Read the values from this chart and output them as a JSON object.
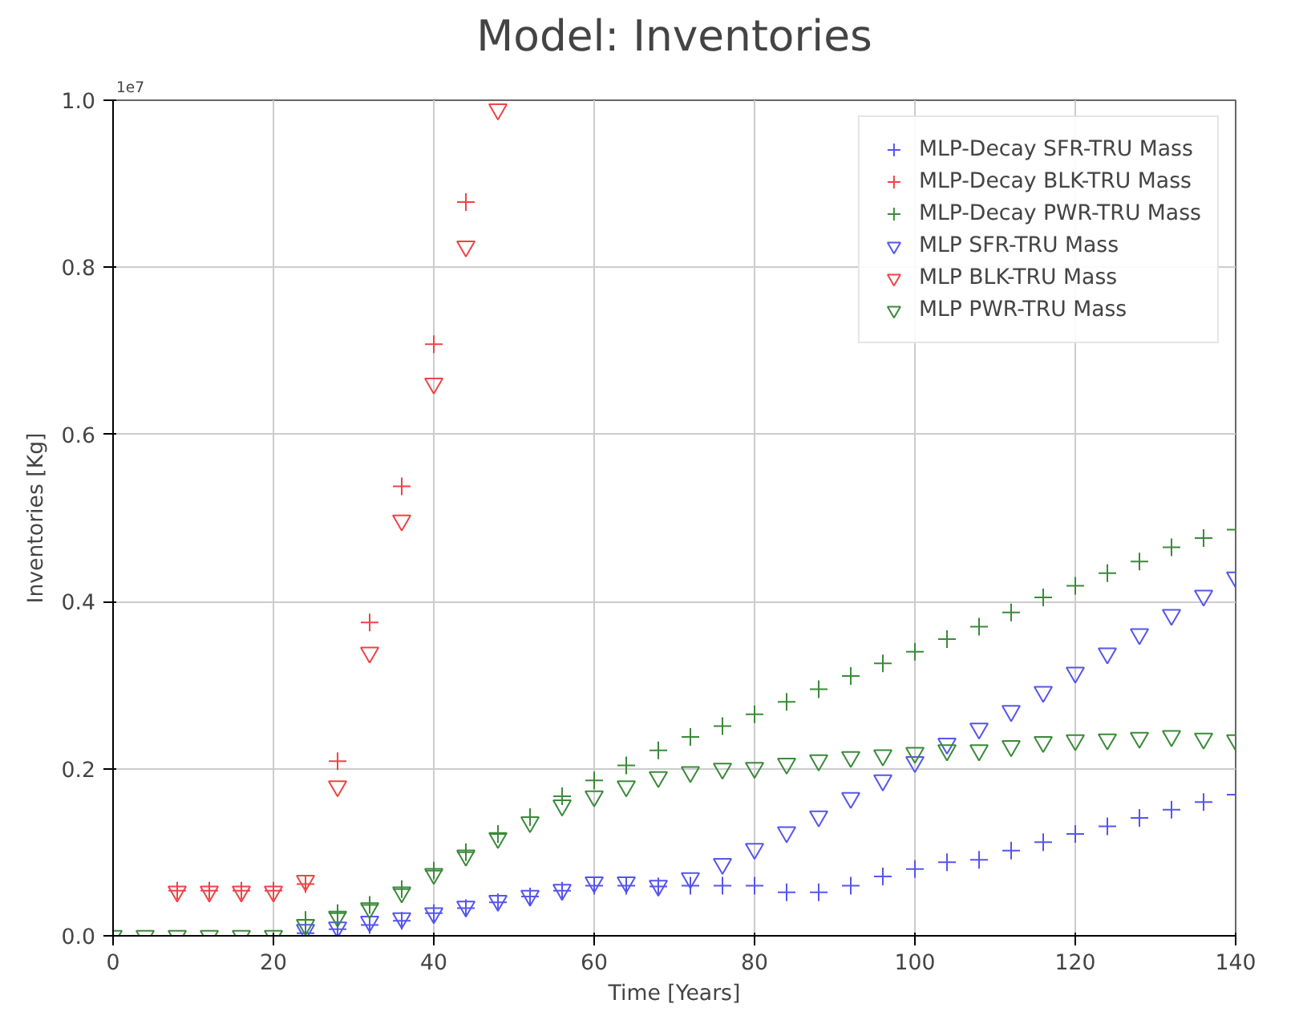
{
  "chart_data": {
    "type": "scatter",
    "title": "Model: Inventories",
    "xlabel": "Time [Years]",
    "ylabel": "Inventories [Kg]",
    "annotations": [
      "1e7"
    ],
    "x": [
      0,
      4,
      8,
      12,
      16,
      20,
      24,
      28,
      32,
      36,
      40,
      44,
      48,
      52,
      56,
      60,
      64,
      68,
      72,
      76,
      80,
      84,
      88,
      92,
      96,
      100,
      104,
      108,
      112,
      116,
      120,
      124,
      128,
      132,
      136,
      140
    ],
    "xlim": [
      0,
      140
    ],
    "ylim": [
      0,
      1.0
    ],
    "xticks": [
      0,
      20,
      40,
      60,
      80,
      100,
      120,
      140
    ],
    "yticks": [
      {
        "value": 0,
        "label": "0.0"
      },
      {
        "value": 0.2,
        "label": "0.2"
      },
      {
        "value": 0.4,
        "label": "0.4"
      },
      {
        "value": 0.6,
        "label": "0.6"
      },
      {
        "value": 0.8,
        "label": "0.8"
      },
      {
        "value": 1.0,
        "label": "1.0"
      }
    ],
    "grid": true,
    "legend": "top right",
    "series": [
      {
        "name": "MLP-Decay SFR-TRU Mass",
        "color": "#5555ee",
        "marker": "cross",
        "values": [
          null,
          null,
          null,
          null,
          null,
          null,
          0.003,
          0.008,
          0.013,
          0.018,
          0.027,
          0.033,
          0.04,
          0.047,
          0.054,
          0.06,
          0.06,
          0.059,
          0.06,
          0.06,
          0.06,
          0.052,
          0.052,
          0.06,
          0.071,
          0.08,
          0.088,
          0.091,
          0.102,
          0.112,
          0.122,
          0.131,
          0.141,
          0.151,
          0.16,
          0.169
        ]
      },
      {
        "name": "MLP-Decay BLK-TRU Mass",
        "color": "#ee4444",
        "marker": "cross",
        "values": [
          null,
          null,
          0.054,
          0.054,
          0.054,
          0.054,
          0.062,
          0.209,
          0.375,
          0.538,
          0.708,
          0.878,
          null,
          null,
          null,
          null,
          null,
          null,
          null,
          null,
          null,
          null,
          null,
          null,
          null,
          null,
          null,
          null,
          null,
          null,
          null,
          null,
          null,
          null,
          null,
          null
        ]
      },
      {
        "name": "MLP-Decay PWR-TRU Mass",
        "color": "#3a8a3a",
        "marker": "cross",
        "values": [
          null,
          null,
          null,
          null,
          null,
          null,
          0.019,
          0.027,
          0.037,
          0.056,
          0.078,
          0.1,
          0.122,
          0.142,
          0.167,
          0.186,
          0.204,
          0.222,
          0.238,
          0.251,
          0.265,
          0.28,
          0.295,
          0.311,
          0.326,
          0.34,
          0.355,
          0.37,
          0.387,
          0.405,
          0.419,
          0.434,
          0.448,
          0.465,
          0.476,
          0.486
        ]
      },
      {
        "name": "MLP SFR-TRU Mass",
        "color": "#5555ee",
        "marker": "triangle",
        "values": [
          null,
          null,
          null,
          null,
          null,
          null,
          0.007,
          0.01,
          0.017,
          0.021,
          0.027,
          0.035,
          0.042,
          0.048,
          0.055,
          0.064,
          0.064,
          0.06,
          0.069,
          0.086,
          0.104,
          0.124,
          0.143,
          0.165,
          0.186,
          0.208,
          0.23,
          0.248,
          0.269,
          0.292,
          0.315,
          0.338,
          0.361,
          0.384,
          0.407,
          0.429
        ]
      },
      {
        "name": "MLP BLK-TRU Mass",
        "color": "#ee4444",
        "marker": "triangle",
        "values": [
          null,
          null,
          0.053,
          0.053,
          0.053,
          0.053,
          0.066,
          0.179,
          0.339,
          0.497,
          0.661,
          0.825,
          0.989,
          null,
          null,
          null,
          null,
          null,
          null,
          null,
          null,
          null,
          null,
          null,
          null,
          null,
          null,
          null,
          null,
          null,
          null,
          null,
          null,
          null,
          null,
          null
        ]
      },
      {
        "name": "MLP PWR-TRU Mass",
        "color": "#3a8a3a",
        "marker": "triangle",
        "values": [
          0,
          0,
          0,
          0,
          0,
          0,
          0.013,
          0.023,
          0.033,
          0.052,
          0.074,
          0.096,
          0.117,
          0.136,
          0.156,
          0.167,
          0.179,
          0.19,
          0.196,
          0.2,
          0.201,
          0.206,
          0.21,
          0.214,
          0.216,
          0.219,
          0.222,
          0.222,
          0.227,
          0.232,
          0.234,
          0.235,
          0.237,
          0.239,
          0.236,
          0.234
        ]
      }
    ]
  }
}
